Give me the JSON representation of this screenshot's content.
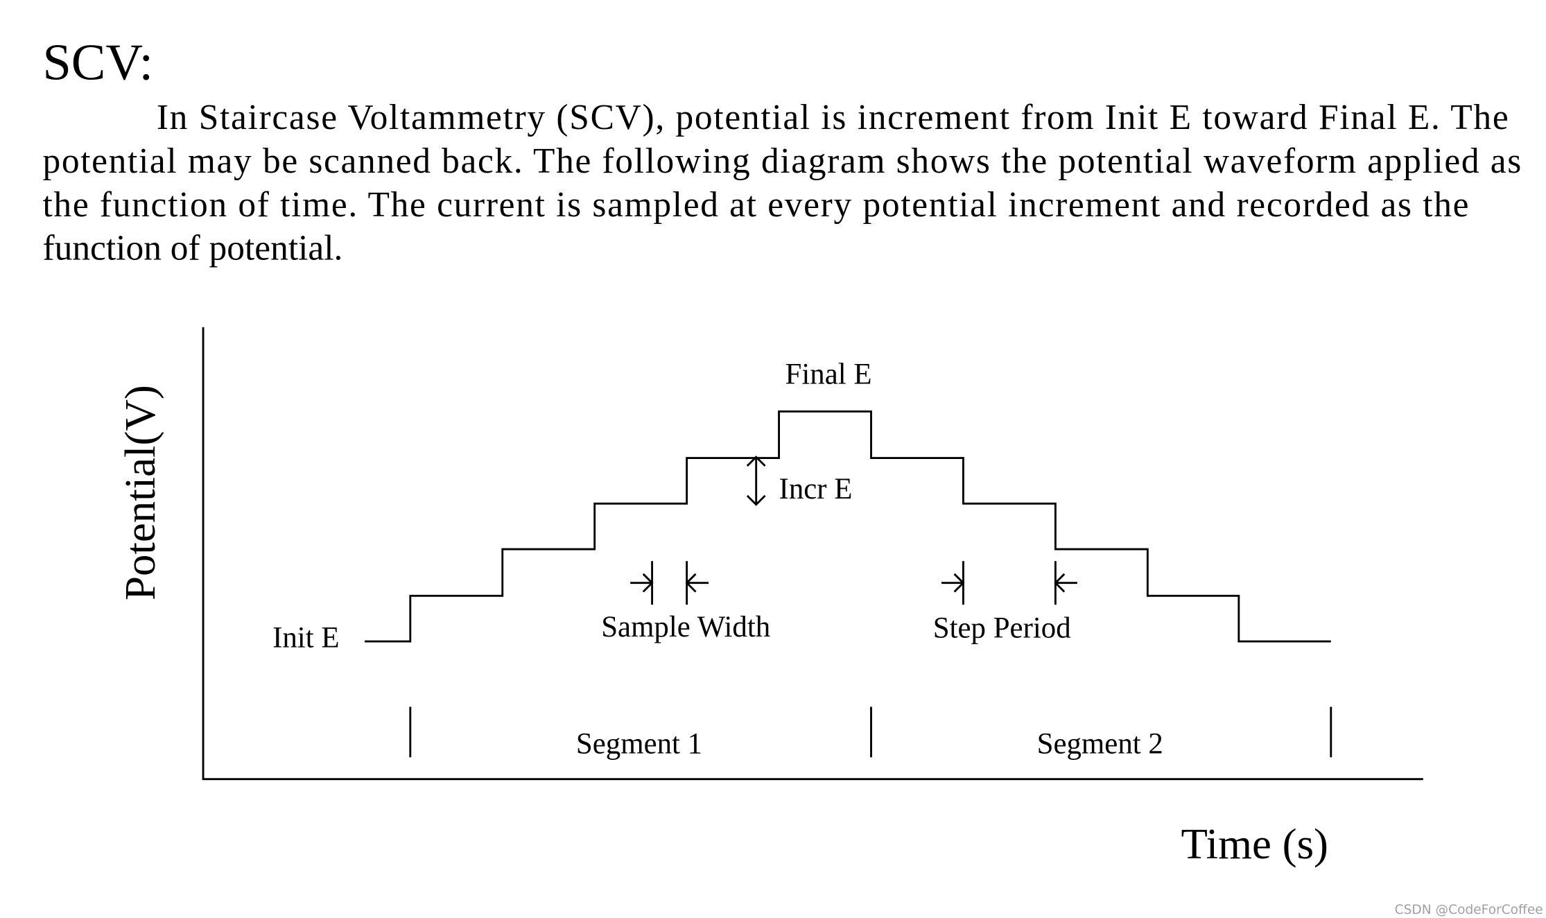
{
  "heading": "SCV:",
  "paragraph": {
    "lines": [
      "In Staircase Voltammetry (SCV), potential is increment from Init E toward Final E. The",
      "potential may be scanned back. The following diagram shows the potential waveform applied as",
      "the function of time.  The current is sampled at every potential increment and recorded as the",
      "function of potential."
    ]
  },
  "diagram": {
    "y_axis_label": "Potential(V)",
    "x_axis_label": "Time (s)",
    "final_e": "Final  E",
    "incr_e": "Incr E",
    "init_e": "Init E",
    "sample_width": "Sample Width",
    "step_period": "Step Period",
    "segments": [
      "Segment 1",
      "Segment 2"
    ]
  },
  "watermark": "CSDN @CodeForCoffee"
}
